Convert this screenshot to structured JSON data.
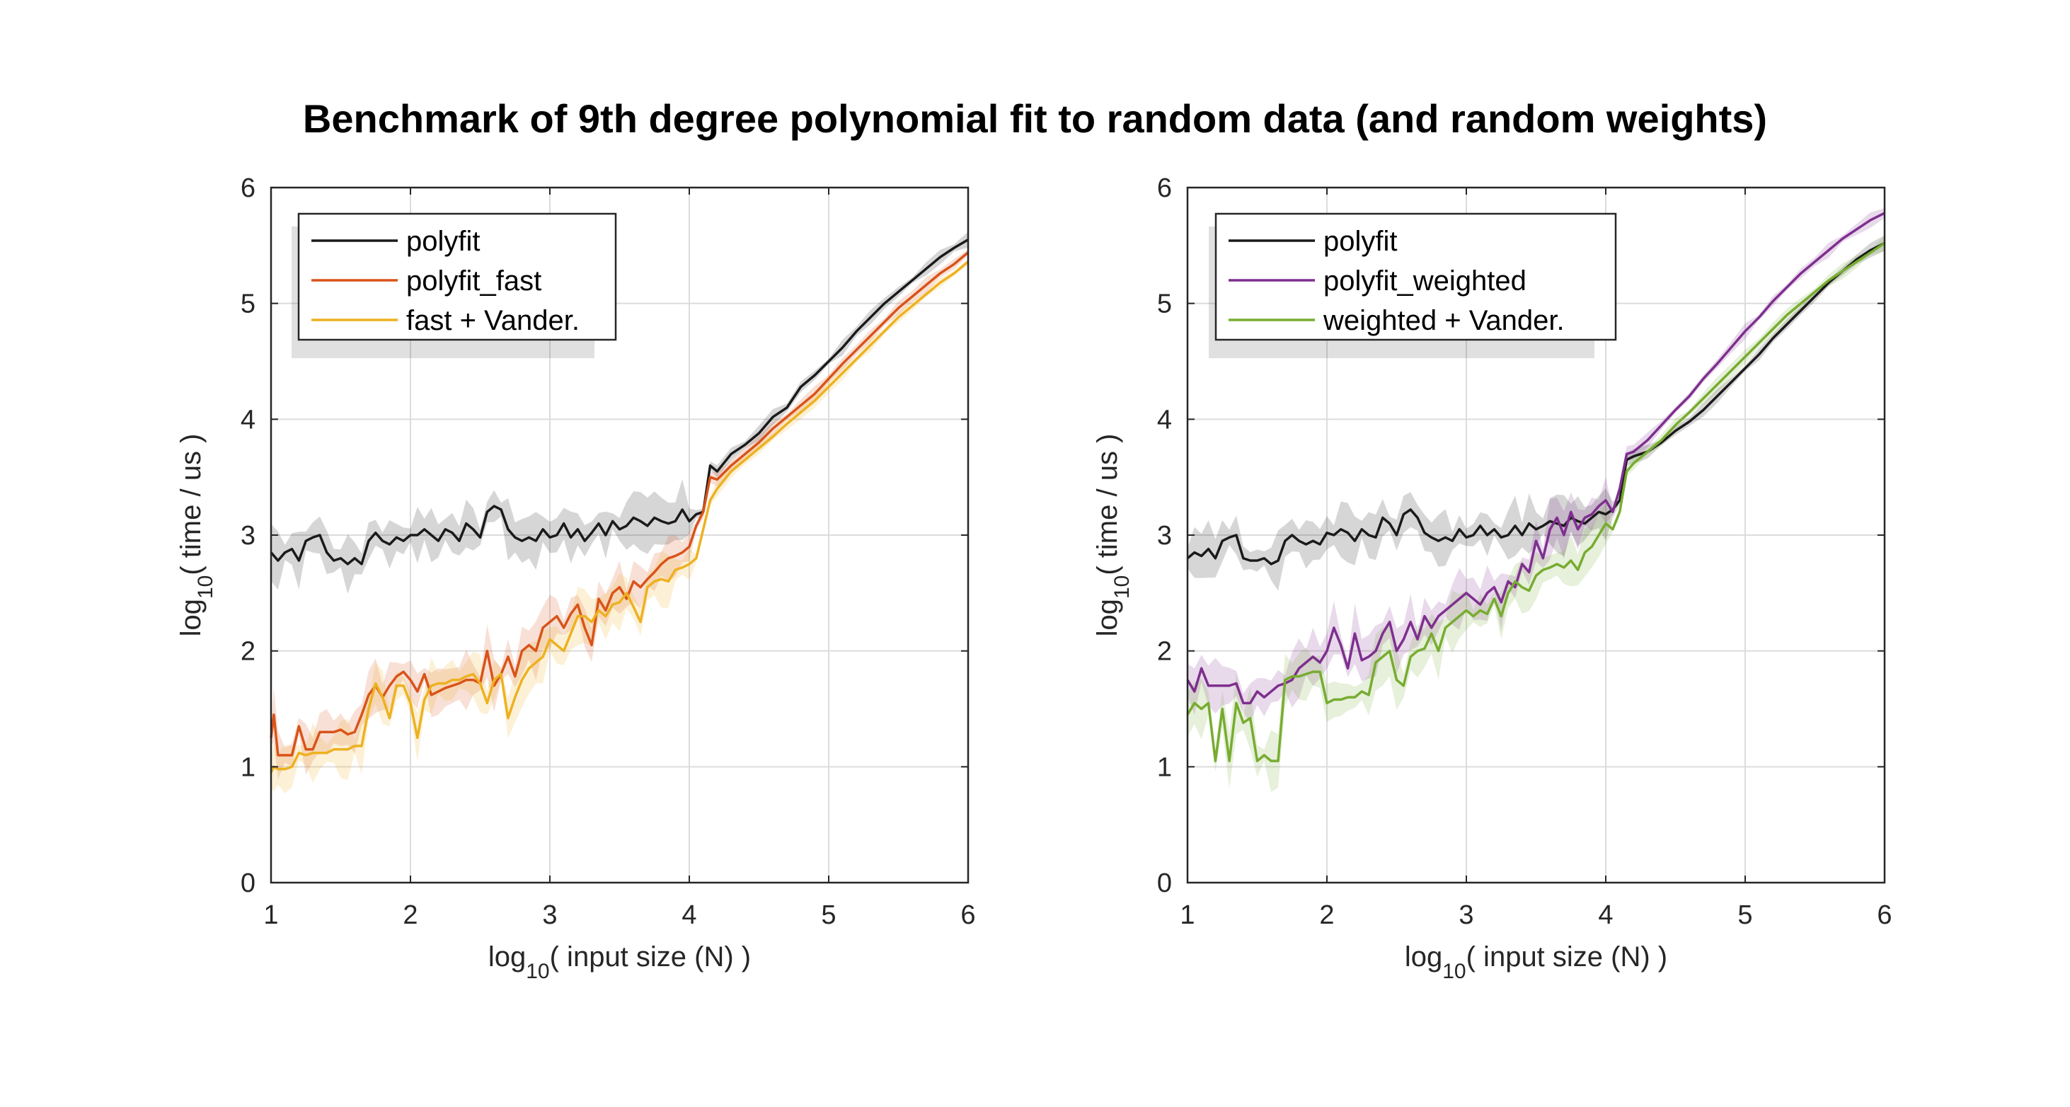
{
  "figure": {
    "title": "Benchmark of 9th degree polynomial fit to random data (and random weights)"
  },
  "chart_data": [
    {
      "type": "line",
      "xlabel": "log10( input size (N) )",
      "ylabel": "log10( time / us )",
      "xlim": [
        1,
        6
      ],
      "ylim": [
        0,
        6
      ],
      "xticks": [
        1,
        2,
        3,
        4,
        5,
        6
      ],
      "yticks": [
        0,
        1,
        2,
        3,
        4,
        5,
        6
      ],
      "grid": true,
      "legend_position": "top-left",
      "series": [
        {
          "name": "polyfit",
          "color": "#1a1a1a",
          "x": [
            1.0,
            1.05,
            1.1,
            1.15,
            1.2,
            1.25,
            1.3,
            1.35,
            1.4,
            1.45,
            1.5,
            1.55,
            1.6,
            1.65,
            1.7,
            1.75,
            1.8,
            1.85,
            1.9,
            1.95,
            2.0,
            2.05,
            2.1,
            2.15,
            2.2,
            2.25,
            2.3,
            2.35,
            2.4,
            2.45,
            2.5,
            2.55,
            2.6,
            2.65,
            2.7,
            2.75,
            2.8,
            2.85,
            2.9,
            2.95,
            3.0,
            3.05,
            3.1,
            3.15,
            3.2,
            3.25,
            3.3,
            3.35,
            3.4,
            3.45,
            3.5,
            3.55,
            3.6,
            3.65,
            3.7,
            3.75,
            3.8,
            3.85,
            3.9,
            3.95,
            4.0,
            4.05,
            4.1,
            4.15,
            4.2,
            4.3,
            4.4,
            4.5,
            4.6,
            4.7,
            4.8,
            4.9,
            5.0,
            5.1,
            5.2,
            5.3,
            5.4,
            5.5,
            5.6,
            5.7,
            5.8,
            5.9,
            6.0
          ],
          "y": [
            2.85,
            2.78,
            2.85,
            2.88,
            2.78,
            2.95,
            2.98,
            3.0,
            2.85,
            2.78,
            2.8,
            2.75,
            2.8,
            2.75,
            2.95,
            3.02,
            2.95,
            2.92,
            2.98,
            2.95,
            3.0,
            3.0,
            3.05,
            3.0,
            2.95,
            3.05,
            3.02,
            2.95,
            3.1,
            3.05,
            2.98,
            3.2,
            3.25,
            3.22,
            3.05,
            2.98,
            2.95,
            2.98,
            2.95,
            3.05,
            2.98,
            3.0,
            3.1,
            2.98,
            3.05,
            2.95,
            3.02,
            3.1,
            3.0,
            3.12,
            3.05,
            3.08,
            3.15,
            3.12,
            3.08,
            3.15,
            3.12,
            3.1,
            3.12,
            3.22,
            3.12,
            3.18,
            3.2,
            3.6,
            3.55,
            3.7,
            3.78,
            3.88,
            4.02,
            4.1,
            4.28,
            4.38,
            4.5,
            4.62,
            4.76,
            4.88,
            5.0,
            5.1,
            5.2,
            5.3,
            5.4,
            5.48,
            5.55
          ]
        },
        {
          "name": "polyfit_fast",
          "color": "#d95319",
          "x": [
            1.0,
            1.02,
            1.05,
            1.1,
            1.15,
            1.2,
            1.25,
            1.3,
            1.35,
            1.4,
            1.45,
            1.5,
            1.55,
            1.6,
            1.65,
            1.7,
            1.75,
            1.8,
            1.85,
            1.9,
            1.95,
            2.0,
            2.05,
            2.1,
            2.15,
            2.2,
            2.25,
            2.3,
            2.35,
            2.4,
            2.45,
            2.5,
            2.55,
            2.6,
            2.65,
            2.7,
            2.75,
            2.8,
            2.85,
            2.9,
            2.95,
            3.0,
            3.05,
            3.1,
            3.15,
            3.2,
            3.25,
            3.3,
            3.35,
            3.4,
            3.45,
            3.5,
            3.55,
            3.6,
            3.65,
            3.7,
            3.75,
            3.8,
            3.85,
            3.9,
            3.95,
            4.0,
            4.05,
            4.1,
            4.15,
            4.2,
            4.3,
            4.4,
            4.5,
            4.6,
            4.7,
            4.8,
            4.9,
            5.0,
            5.1,
            5.2,
            5.3,
            5.4,
            5.5,
            5.6,
            5.7,
            5.8,
            5.9,
            6.0
          ],
          "y": [
            1.25,
            1.45,
            1.1,
            1.1,
            1.1,
            1.35,
            1.15,
            1.15,
            1.3,
            1.3,
            1.3,
            1.32,
            1.28,
            1.3,
            1.45,
            1.62,
            1.7,
            1.6,
            1.7,
            1.78,
            1.82,
            1.75,
            1.65,
            1.8,
            1.62,
            1.65,
            1.68,
            1.7,
            1.72,
            1.75,
            1.75,
            1.72,
            2.0,
            1.7,
            1.8,
            1.95,
            1.78,
            2.0,
            2.05,
            2.0,
            2.2,
            2.25,
            2.3,
            2.2,
            2.32,
            2.4,
            2.2,
            2.05,
            2.45,
            2.35,
            2.5,
            2.55,
            2.45,
            2.6,
            2.55,
            2.62,
            2.68,
            2.75,
            2.8,
            2.82,
            2.85,
            2.9,
            3.08,
            3.2,
            3.5,
            3.48,
            3.6,
            3.7,
            3.8,
            3.92,
            4.02,
            4.12,
            4.22,
            4.35,
            4.48,
            4.6,
            4.72,
            4.84,
            4.96,
            5.06,
            5.16,
            5.26,
            5.34,
            5.44
          ]
        },
        {
          "name": "fast + Vander.",
          "color": "#edb120",
          "x": [
            1.0,
            1.02,
            1.05,
            1.1,
            1.15,
            1.2,
            1.25,
            1.3,
            1.35,
            1.4,
            1.45,
            1.5,
            1.55,
            1.6,
            1.65,
            1.7,
            1.75,
            1.8,
            1.85,
            1.9,
            1.95,
            2.0,
            2.05,
            2.1,
            2.15,
            2.2,
            2.25,
            2.3,
            2.35,
            2.4,
            2.45,
            2.5,
            2.55,
            2.6,
            2.65,
            2.7,
            2.75,
            2.8,
            2.85,
            2.9,
            2.95,
            3.0,
            3.05,
            3.1,
            3.15,
            3.2,
            3.25,
            3.3,
            3.35,
            3.4,
            3.45,
            3.5,
            3.55,
            3.6,
            3.65,
            3.7,
            3.75,
            3.8,
            3.85,
            3.9,
            3.95,
            4.0,
            4.05,
            4.1,
            4.15,
            4.2,
            4.3,
            4.4,
            4.5,
            4.6,
            4.7,
            4.8,
            4.9,
            5.0,
            5.1,
            5.2,
            5.3,
            5.4,
            5.5,
            5.6,
            5.7,
            5.8,
            5.9,
            6.0
          ],
          "y": [
            0.95,
            1.0,
            0.98,
            0.98,
            1.0,
            1.12,
            1.1,
            1.12,
            1.12,
            1.12,
            1.15,
            1.15,
            1.15,
            1.18,
            1.18,
            1.5,
            1.72,
            1.6,
            1.42,
            1.7,
            1.7,
            1.55,
            1.25,
            1.58,
            1.7,
            1.72,
            1.72,
            1.75,
            1.75,
            1.78,
            1.8,
            1.72,
            1.55,
            1.75,
            1.8,
            1.42,
            1.6,
            1.75,
            1.85,
            1.9,
            1.95,
            2.1,
            2.05,
            2.0,
            2.15,
            2.3,
            2.3,
            2.25,
            2.35,
            2.3,
            2.4,
            2.42,
            2.5,
            2.38,
            2.25,
            2.55,
            2.6,
            2.62,
            2.6,
            2.7,
            2.72,
            2.75,
            2.8,
            3.05,
            3.3,
            3.4,
            3.55,
            3.65,
            3.75,
            3.85,
            3.96,
            4.06,
            4.16,
            4.28,
            4.4,
            4.52,
            4.64,
            4.76,
            4.88,
            4.98,
            5.08,
            5.18,
            5.26,
            5.36
          ]
        }
      ]
    },
    {
      "type": "line",
      "xlabel": "log10( input size (N) )",
      "ylabel": "log10( time / us )",
      "xlim": [
        1,
        6
      ],
      "ylim": [
        0,
        6
      ],
      "xticks": [
        1,
        2,
        3,
        4,
        5,
        6
      ],
      "yticks": [
        0,
        1,
        2,
        3,
        4,
        5,
        6
      ],
      "grid": true,
      "legend_position": "top-left",
      "series": [
        {
          "name": "polyfit",
          "color": "#1a1a1a",
          "x": [
            1.0,
            1.05,
            1.1,
            1.15,
            1.2,
            1.25,
            1.3,
            1.35,
            1.4,
            1.45,
            1.5,
            1.55,
            1.6,
            1.65,
            1.7,
            1.75,
            1.8,
            1.85,
            1.9,
            1.95,
            2.0,
            2.05,
            2.1,
            2.15,
            2.2,
            2.25,
            2.3,
            2.35,
            2.4,
            2.45,
            2.5,
            2.55,
            2.6,
            2.65,
            2.7,
            2.75,
            2.8,
            2.85,
            2.9,
            2.95,
            3.0,
            3.05,
            3.1,
            3.15,
            3.2,
            3.25,
            3.3,
            3.35,
            3.4,
            3.45,
            3.5,
            3.55,
            3.6,
            3.65,
            3.7,
            3.75,
            3.8,
            3.85,
            3.9,
            3.95,
            4.0,
            4.05,
            4.1,
            4.15,
            4.2,
            4.3,
            4.4,
            4.5,
            4.6,
            4.7,
            4.8,
            4.9,
            5.0,
            5.1,
            5.2,
            5.3,
            5.4,
            5.5,
            5.6,
            5.7,
            5.8,
            5.9,
            6.0
          ],
          "y": [
            2.8,
            2.85,
            2.82,
            2.88,
            2.8,
            2.95,
            2.98,
            3.0,
            2.8,
            2.78,
            2.78,
            2.8,
            2.75,
            2.78,
            2.95,
            3.0,
            2.95,
            2.92,
            2.95,
            2.92,
            3.02,
            3.0,
            3.05,
            3.02,
            2.95,
            3.05,
            3.0,
            2.98,
            3.15,
            3.1,
            3.0,
            3.18,
            3.22,
            3.15,
            3.02,
            2.98,
            2.95,
            2.98,
            2.95,
            3.05,
            2.98,
            3.0,
            3.08,
            3.0,
            3.05,
            2.98,
            3.0,
            3.08,
            3.0,
            3.1,
            3.05,
            3.08,
            3.12,
            3.1,
            3.08,
            3.15,
            3.12,
            3.1,
            3.15,
            3.2,
            3.18,
            3.22,
            3.3,
            3.65,
            3.68,
            3.72,
            3.8,
            3.9,
            3.98,
            4.08,
            4.2,
            4.32,
            4.44,
            4.56,
            4.7,
            4.82,
            4.94,
            5.06,
            5.18,
            5.28,
            5.38,
            5.46,
            5.52
          ]
        },
        {
          "name": "polyfit_weighted",
          "color": "#7e2f8e",
          "x": [
            1.0,
            1.05,
            1.1,
            1.15,
            1.2,
            1.25,
            1.3,
            1.35,
            1.4,
            1.45,
            1.5,
            1.55,
            1.6,
            1.65,
            1.7,
            1.75,
            1.8,
            1.85,
            1.9,
            1.95,
            2.0,
            2.05,
            2.1,
            2.15,
            2.2,
            2.25,
            2.3,
            2.35,
            2.4,
            2.45,
            2.5,
            2.55,
            2.6,
            2.65,
            2.7,
            2.75,
            2.8,
            2.85,
            2.9,
            2.95,
            3.0,
            3.05,
            3.1,
            3.15,
            3.2,
            3.25,
            3.3,
            3.35,
            3.4,
            3.45,
            3.5,
            3.55,
            3.6,
            3.65,
            3.7,
            3.75,
            3.8,
            3.85,
            3.9,
            3.95,
            4.0,
            4.05,
            4.1,
            4.15,
            4.2,
            4.3,
            4.4,
            4.5,
            4.6,
            4.7,
            4.8,
            4.9,
            5.0,
            5.1,
            5.2,
            5.3,
            5.4,
            5.5,
            5.6,
            5.7,
            5.8,
            5.9,
            6.0
          ],
          "y": [
            1.75,
            1.65,
            1.85,
            1.7,
            1.7,
            1.7,
            1.7,
            1.72,
            1.55,
            1.55,
            1.65,
            1.6,
            1.65,
            1.7,
            1.72,
            1.75,
            1.85,
            1.9,
            1.95,
            1.9,
            2.0,
            2.2,
            2.05,
            1.85,
            2.15,
            1.92,
            1.95,
            2.0,
            2.15,
            2.25,
            2.0,
            2.1,
            2.25,
            2.1,
            2.3,
            2.2,
            2.3,
            2.35,
            2.4,
            2.45,
            2.5,
            2.45,
            2.4,
            2.5,
            2.55,
            2.42,
            2.6,
            2.55,
            2.75,
            2.68,
            2.95,
            2.8,
            3.05,
            3.15,
            3.0,
            3.2,
            3.05,
            3.15,
            3.18,
            3.25,
            3.3,
            3.2,
            3.4,
            3.7,
            3.72,
            3.82,
            3.95,
            4.08,
            4.2,
            4.35,
            4.48,
            4.62,
            4.76,
            4.88,
            5.02,
            5.14,
            5.26,
            5.36,
            5.46,
            5.56,
            5.64,
            5.72,
            5.78
          ]
        },
        {
          "name": "weighted + Vander.",
          "color": "#77ac30",
          "x": [
            1.0,
            1.05,
            1.1,
            1.15,
            1.2,
            1.25,
            1.3,
            1.35,
            1.4,
            1.45,
            1.5,
            1.55,
            1.6,
            1.65,
            1.7,
            1.75,
            1.8,
            1.85,
            1.9,
            1.95,
            2.0,
            2.05,
            2.1,
            2.15,
            2.2,
            2.25,
            2.3,
            2.35,
            2.4,
            2.45,
            2.5,
            2.55,
            2.6,
            2.65,
            2.7,
            2.75,
            2.8,
            2.85,
            2.9,
            2.95,
            3.0,
            3.05,
            3.1,
            3.15,
            3.2,
            3.25,
            3.3,
            3.35,
            3.4,
            3.45,
            3.5,
            3.55,
            3.6,
            3.65,
            3.7,
            3.75,
            3.8,
            3.85,
            3.9,
            3.95,
            4.0,
            4.05,
            4.1,
            4.15,
            4.2,
            4.3,
            4.4,
            4.5,
            4.6,
            4.7,
            4.8,
            4.9,
            5.0,
            5.1,
            5.2,
            5.3,
            5.4,
            5.5,
            5.6,
            5.7,
            5.8,
            5.9,
            6.0
          ],
          "y": [
            1.45,
            1.55,
            1.5,
            1.55,
            1.05,
            1.5,
            1.05,
            1.55,
            1.38,
            1.42,
            1.05,
            1.1,
            1.05,
            1.05,
            1.75,
            1.78,
            1.78,
            1.8,
            1.82,
            1.82,
            1.55,
            1.58,
            1.58,
            1.6,
            1.6,
            1.65,
            1.62,
            1.9,
            1.95,
            2.0,
            1.75,
            1.7,
            1.95,
            2.0,
            2.02,
            2.15,
            2.0,
            2.2,
            2.25,
            2.3,
            2.35,
            2.3,
            2.35,
            2.32,
            2.45,
            2.3,
            2.5,
            2.6,
            2.55,
            2.52,
            2.65,
            2.7,
            2.72,
            2.75,
            2.72,
            2.78,
            2.7,
            2.85,
            2.9,
            3.0,
            3.1,
            3.05,
            3.2,
            3.55,
            3.62,
            3.72,
            3.82,
            3.95,
            4.06,
            4.18,
            4.3,
            4.42,
            4.54,
            4.66,
            4.78,
            4.9,
            5.0,
            5.1,
            5.2,
            5.28,
            5.36,
            5.44,
            5.52
          ]
        }
      ]
    }
  ]
}
